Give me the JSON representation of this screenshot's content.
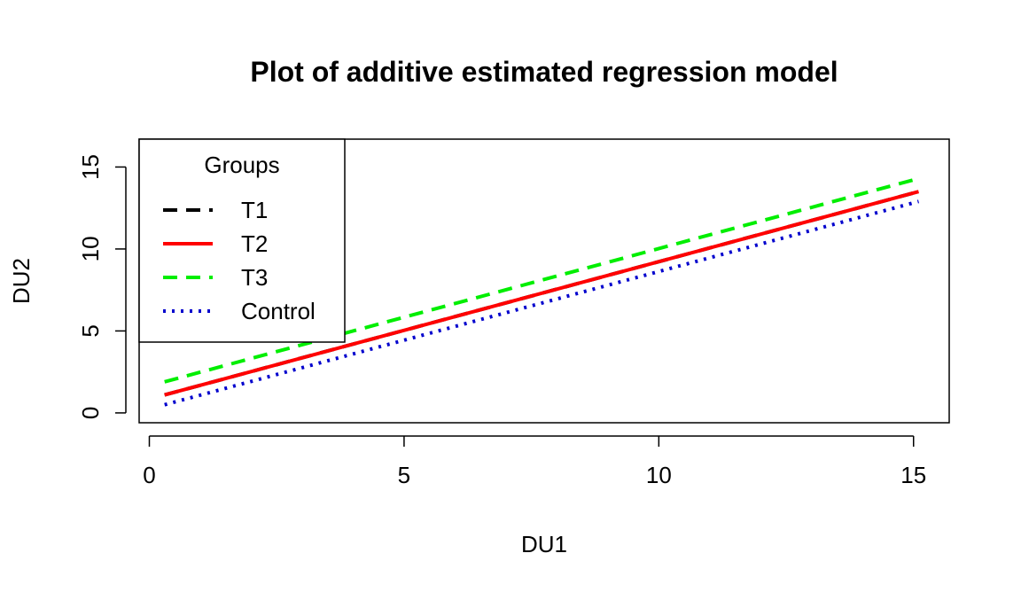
{
  "chart_data": {
    "type": "line",
    "title": "Plot of additive estimated regression model",
    "xlabel": "DU1",
    "ylabel": "DU2",
    "xlim": [
      -0.2,
      15.7
    ],
    "ylim": [
      -0.6,
      16.7
    ],
    "x_ticks": [
      0,
      5,
      10,
      15
    ],
    "x_tick_labels": [
      "0",
      "5",
      "10",
      "15"
    ],
    "y_ticks": [
      0,
      5,
      10,
      15
    ],
    "y_tick_labels": [
      "0",
      "5",
      "10",
      "15"
    ],
    "grid": false,
    "legend": {
      "title": "Groups",
      "position": "top-left"
    },
    "series": [
      {
        "name": "T1",
        "color": "#000000",
        "style": "dashed",
        "x": [
          0.3,
          15.1
        ],
        "y": [
          1.1,
          13.5
        ]
      },
      {
        "name": "T2",
        "color": "#ff0000",
        "style": "solid",
        "x": [
          0.3,
          15.1
        ],
        "y": [
          1.1,
          13.5
        ]
      },
      {
        "name": "T3",
        "color": "#00ee00",
        "style": "dashed",
        "x": [
          0.3,
          15.1
        ],
        "y": [
          1.9,
          14.3
        ]
      },
      {
        "name": "Control",
        "color": "#0000cd",
        "style": "dotted",
        "x": [
          0.3,
          15.1
        ],
        "y": [
          0.5,
          12.9
        ]
      }
    ]
  }
}
